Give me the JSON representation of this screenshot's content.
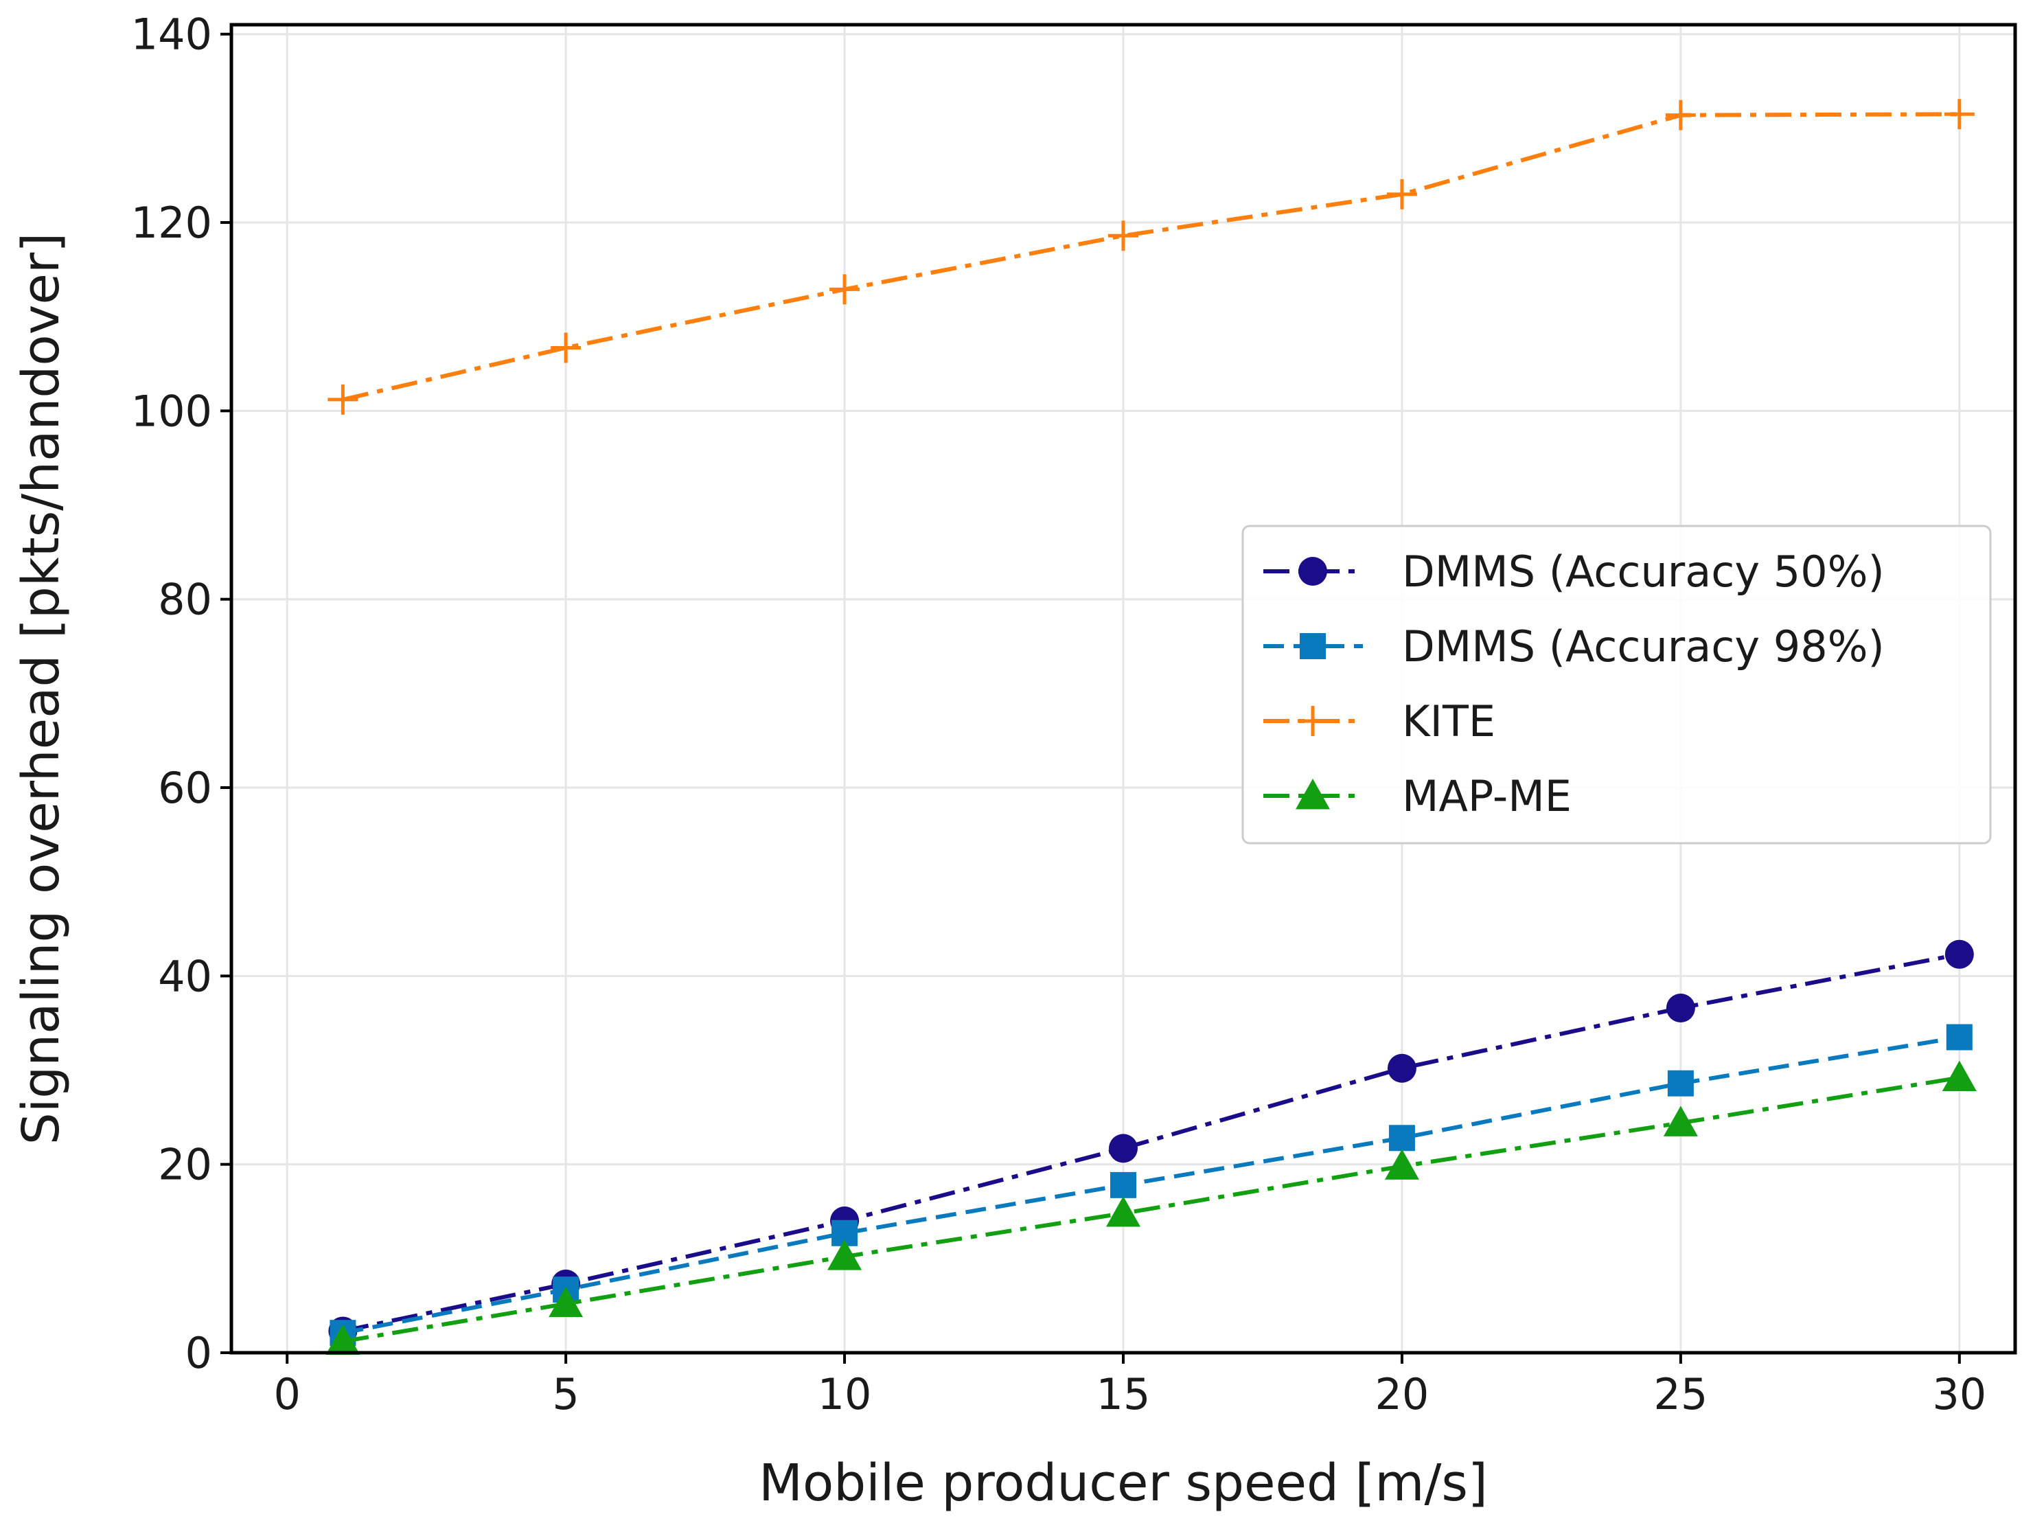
{
  "chart_data": {
    "type": "line",
    "title": "",
    "xlabel": "Mobile producer speed [m/s]",
    "ylabel": "Signaling overhead [pkts/handover]",
    "xlim": [
      -1,
      31
    ],
    "ylim": [
      0,
      141
    ],
    "xticks": [
      0,
      5,
      10,
      15,
      20,
      25,
      30
    ],
    "yticks": [
      0,
      20,
      40,
      60,
      80,
      100,
      120,
      140
    ],
    "grid": true,
    "legend_position": "center-right",
    "x": [
      1,
      5,
      10,
      15,
      20,
      25,
      30
    ],
    "series": [
      {
        "name": "DMMS (Accuracy 50%)",
        "values": [
          2.3,
          7.3,
          14.0,
          21.7,
          30.2,
          36.6,
          42.3
        ],
        "color": "#1b0c8a",
        "marker": "circle",
        "dash": "dashdot"
      },
      {
        "name": "DMMS (Accuracy 98%)",
        "values": [
          2.1,
          6.7,
          12.7,
          17.8,
          22.8,
          28.6,
          33.5
        ],
        "color": "#0a7abf",
        "marker": "square",
        "dash": "dashed"
      },
      {
        "name": "KITE",
        "values": [
          101.2,
          106.7,
          112.9,
          118.6,
          123.0,
          131.4,
          131.5
        ],
        "color": "#ff7f0e",
        "marker": "plus",
        "dash": "dashdot"
      },
      {
        "name": "MAP-ME",
        "values": [
          1.2,
          5.2,
          10.2,
          14.8,
          19.8,
          24.4,
          29.2
        ],
        "color": "#12a012",
        "marker": "triangle",
        "dash": "dashdot"
      }
    ]
  }
}
